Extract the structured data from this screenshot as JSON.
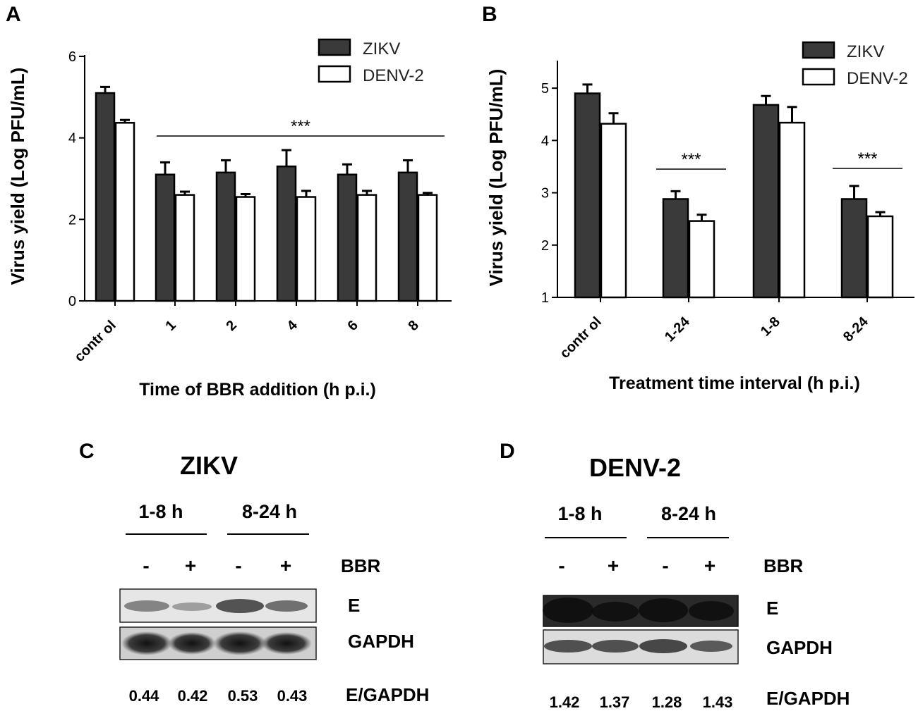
{
  "panels": {
    "A": {
      "label": "A",
      "chart_data": {
        "type": "bar",
        "categories": [
          "control",
          "1",
          "2",
          "4",
          "6",
          "8"
        ],
        "series": [
          {
            "name": "ZIKV",
            "color": "#3a3a3a",
            "values": [
              5.1,
              3.1,
              3.15,
              3.3,
              3.1,
              3.15
            ],
            "errors": [
              0.15,
              0.3,
              0.3,
              0.4,
              0.25,
              0.3
            ]
          },
          {
            "name": "DENV-2",
            "color": "#ffffff",
            "values": [
              4.37,
              2.6,
              2.55,
              2.55,
              2.6,
              2.6
            ],
            "errors": [
              0.07,
              0.08,
              0.07,
              0.15,
              0.1,
              0.05
            ]
          }
        ],
        "ylabel": "Virus yield (Log PFU/mL)",
        "xlabel": "Time of BBR addition  (h p.i.)",
        "ylim": [
          0,
          6
        ],
        "yticks": [
          0,
          2,
          4,
          6
        ],
        "legend": "top-right",
        "annotations": [
          {
            "text": "***",
            "from_category": "1",
            "to_category": "8"
          }
        ]
      }
    },
    "B": {
      "label": "B",
      "chart_data": {
        "type": "bar",
        "categories": [
          "control",
          "1-24",
          "1-8",
          "8-24"
        ],
        "series": [
          {
            "name": "ZIKV",
            "color": "#3a3a3a",
            "values": [
              4.9,
              2.88,
              4.68,
              2.88
            ],
            "errors": [
              0.17,
              0.15,
              0.17,
              0.25
            ]
          },
          {
            "name": "DENV-2",
            "color": "#ffffff",
            "values": [
              4.32,
              2.46,
              4.34,
              2.55
            ],
            "errors": [
              0.2,
              0.12,
              0.3,
              0.08
            ]
          }
        ],
        "ylabel": "Virus yield (Log PFU/mL)",
        "xlabel": "Treatment time interval (h p.i.)",
        "ylim": [
          1,
          5.5
        ],
        "yticks": [
          1,
          2,
          3,
          4,
          5
        ],
        "legend": "top-right",
        "annotations": [
          {
            "text": "***",
            "category": "1-24"
          },
          {
            "text": "***",
            "category": "8-24"
          }
        ]
      }
    },
    "C": {
      "label": "C",
      "title": "ZIKV",
      "groups": [
        "1-8 h",
        "8-24 h"
      ],
      "treatment": [
        "-",
        "+",
        "-",
        "+"
      ],
      "treatment_label": "BBR",
      "bands": [
        "E",
        "GAPDH"
      ],
      "ratio_label": "E/GAPDH",
      "ratios": [
        "0.44",
        "0.42",
        "0.53",
        "0.43"
      ]
    },
    "D": {
      "label": "D",
      "title": "DENV-2",
      "groups": [
        "1-8 h",
        "8-24 h"
      ],
      "treatment": [
        "-",
        "+",
        "-",
        "+"
      ],
      "treatment_label": "BBR",
      "bands": [
        "E",
        "GAPDH"
      ],
      "ratio_label": "E/GAPDH",
      "ratios": [
        "1.42",
        "1.37",
        "1.28",
        "1.43"
      ]
    }
  }
}
